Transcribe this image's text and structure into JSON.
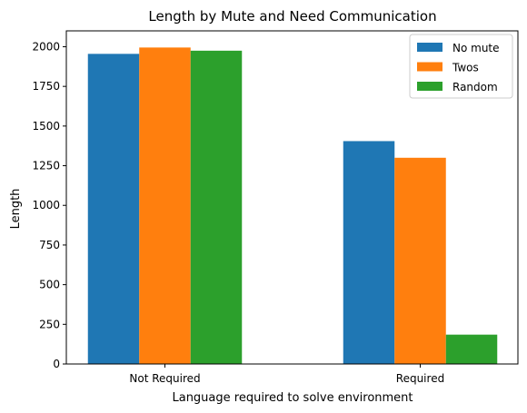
{
  "chart_data": {
    "type": "bar",
    "title": "Length by Mute and Need Communication",
    "xlabel": "Language required to solve environment",
    "ylabel": "Length",
    "categories": [
      "Not Required",
      "Required"
    ],
    "series": [
      {
        "name": "No mute",
        "color": "#1f77b4",
        "values": [
          1955,
          1405
        ]
      },
      {
        "name": "Twos",
        "color": "#ff7f0e",
        "values": [
          1995,
          1300
        ]
      },
      {
        "name": "Random",
        "color": "#2ca02c",
        "values": [
          1975,
          185
        ]
      }
    ],
    "ylim": [
      0,
      2100
    ],
    "yticks": [
      "0",
      "250",
      "500",
      "750",
      "1000",
      "1250",
      "1500",
      "1750",
      "2000"
    ],
    "grid": false,
    "legend_position": "top-right"
  }
}
